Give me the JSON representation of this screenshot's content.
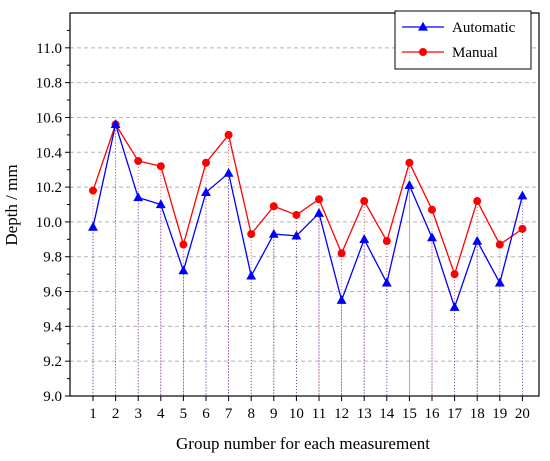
{
  "chart_data": {
    "type": "line",
    "title": "",
    "xlabel": "Group number for each measurement",
    "ylabel": "Depth / mm",
    "categories": [
      "1",
      "2",
      "3",
      "4",
      "5",
      "6",
      "7",
      "8",
      "9",
      "10",
      "11",
      "12",
      "13",
      "14",
      "15",
      "16",
      "17",
      "18",
      "19",
      "20"
    ],
    "ylim": [
      9.0,
      11.2
    ],
    "yticks": [
      "9.0",
      "9.2",
      "9.4",
      "9.6",
      "9.8",
      "10.0",
      "10.2",
      "10.4",
      "10.6",
      "10.8",
      "11.0"
    ],
    "grid": "horizontal dashed",
    "legend": "top-right",
    "series": [
      {
        "name": "Automatic",
        "marker": "triangle",
        "color": "#0000ff",
        "values": [
          9.97,
          10.56,
          10.14,
          10.1,
          9.72,
          10.17,
          10.28,
          9.69,
          9.93,
          9.92,
          10.05,
          9.55,
          9.9,
          9.65,
          10.21,
          9.91,
          9.51,
          9.89,
          9.65,
          10.15
        ]
      },
      {
        "name": "Manual",
        "marker": "circle",
        "color": "#ff0000",
        "values": [
          10.18,
          10.56,
          10.35,
          10.32,
          9.87,
          10.34,
          10.5,
          9.93,
          10.09,
          10.04,
          10.13,
          9.82,
          10.12,
          9.89,
          10.34,
          10.07,
          9.7,
          10.12,
          9.87,
          9.96
        ]
      }
    ]
  }
}
